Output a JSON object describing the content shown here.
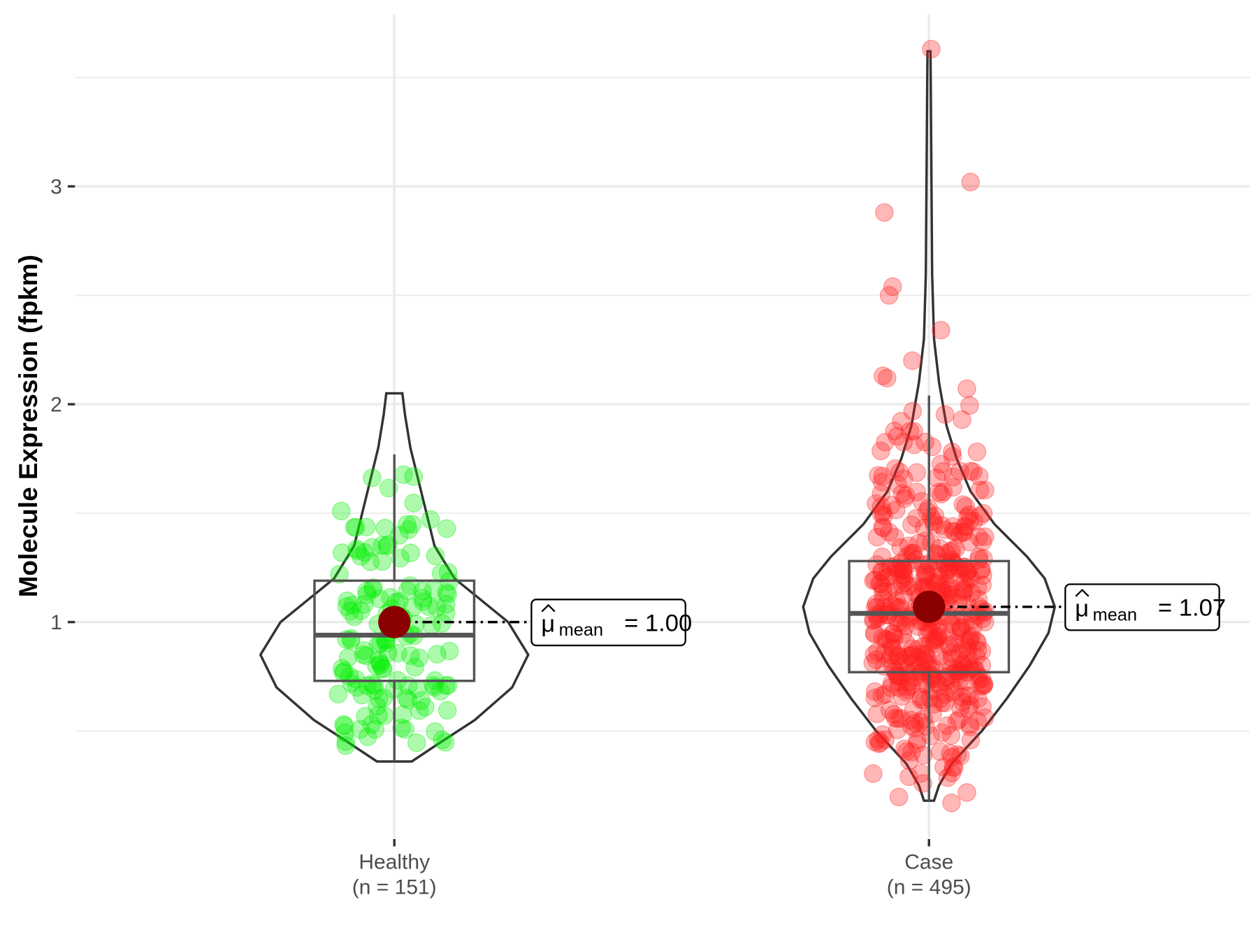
{
  "chart_data": {
    "type": "violin",
    "title": "",
    "xlabel": "",
    "ylabel": "Molecule Expression (fpkm)",
    "ylim": [
      0.02,
      3.75
    ],
    "yticks": [
      1,
      2,
      3
    ],
    "ytick_labels": [
      "1",
      "2",
      "3"
    ],
    "grid": true,
    "groups": [
      {
        "name": "Healthy",
        "n_label": "(n = 151)",
        "n": 151,
        "color": "#00ee00",
        "box": {
          "q1": 0.73,
          "median": 0.94,
          "q3": 1.19,
          "whisker_low": 0.36,
          "whisker_high": 1.77
        },
        "mean": 1.0,
        "mean_label": {
          "symbol": "μ",
          "subscript": "mean",
          "text": "= 1.00"
        },
        "range": [
          0.36,
          2.05
        ],
        "density": [
          [
            0.36,
            0.13
          ],
          [
            0.45,
            0.35
          ],
          [
            0.55,
            0.6
          ],
          [
            0.7,
            0.88
          ],
          [
            0.85,
            1.0
          ],
          [
            1.0,
            0.85
          ],
          [
            1.1,
            0.65
          ],
          [
            1.2,
            0.45
          ],
          [
            1.35,
            0.3
          ],
          [
            1.5,
            0.24
          ],
          [
            1.65,
            0.18
          ],
          [
            1.8,
            0.12
          ],
          [
            1.95,
            0.08
          ],
          [
            2.05,
            0.06
          ]
        ]
      },
      {
        "name": "Case",
        "n_label": "(n = 495)",
        "n": 495,
        "color": "#ff2020",
        "box": {
          "q1": 0.77,
          "median": 1.04,
          "q3": 1.28,
          "whisker_low": 0.18,
          "whisker_high": 2.04
        },
        "mean": 1.07,
        "mean_label": {
          "symbol": "μ",
          "subscript": "mean",
          "text": "= 1.07"
        },
        "range": [
          0.18,
          3.62
        ],
        "outliers": [
          3.63,
          3.02,
          2.88,
          2.54,
          2.5,
          2.34,
          2.2,
          2.13,
          2.12,
          0.17
        ],
        "density": [
          [
            0.18,
            0.04
          ],
          [
            0.25,
            0.08
          ],
          [
            0.35,
            0.18
          ],
          [
            0.5,
            0.42
          ],
          [
            0.65,
            0.62
          ],
          [
            0.8,
            0.8
          ],
          [
            0.95,
            0.95
          ],
          [
            1.07,
            1.0
          ],
          [
            1.2,
            0.92
          ],
          [
            1.3,
            0.78
          ],
          [
            1.45,
            0.52
          ],
          [
            1.6,
            0.33
          ],
          [
            1.75,
            0.22
          ],
          [
            1.9,
            0.14
          ],
          [
            2.1,
            0.08
          ],
          [
            2.3,
            0.04
          ],
          [
            2.6,
            0.025
          ],
          [
            3.0,
            0.02
          ],
          [
            3.4,
            0.015
          ],
          [
            3.62,
            0.012
          ]
        ]
      }
    ]
  }
}
